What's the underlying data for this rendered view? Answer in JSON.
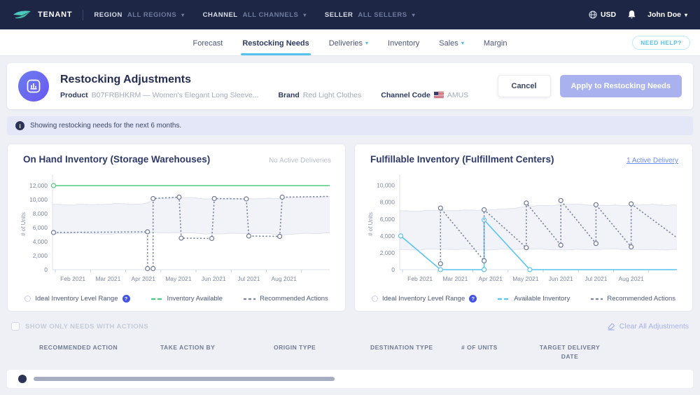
{
  "topnav": {
    "brand": "TENANT",
    "filters": [
      {
        "label": "REGION",
        "value": "ALL REGIONS"
      },
      {
        "label": "CHANNEL",
        "value": "ALL CHANNELS"
      },
      {
        "label": "SELLER",
        "value": "ALL SELLERS"
      }
    ],
    "currency": "USD",
    "user": "John Doe"
  },
  "tabs": [
    {
      "label": "Forecast",
      "active": false,
      "dropdown": false
    },
    {
      "label": "Restocking Needs",
      "active": true,
      "dropdown": false
    },
    {
      "label": "Deliveries",
      "active": false,
      "dropdown": true
    },
    {
      "label": "Inventory",
      "active": false,
      "dropdown": false
    },
    {
      "label": "Sales",
      "active": false,
      "dropdown": true
    },
    {
      "label": "Margin",
      "active": false,
      "dropdown": false
    }
  ],
  "need_help": "NEED HELP?",
  "header": {
    "title": "Restocking Adjustments",
    "product_label": "Product",
    "product_value": "B07FRBHKRM — Women's Elegant Long Sleeve...",
    "brand_label": "Brand",
    "brand_value": "Red Light Clothes",
    "channel_label": "Channel Code",
    "channel_value": "AMUS",
    "cancel_label": "Cancel",
    "apply_label": "Apply to Restocking Needs"
  },
  "banner": {
    "text": "Showing restocking needs for the next 6 months."
  },
  "chart_data": [
    {
      "type": "line",
      "title": "On Hand Inventory (Storage Warehouses)",
      "right_label": "No Active Deliveries",
      "right_label_is_link": false,
      "ylabel": "# of Units",
      "ylim": [
        0,
        13000
      ],
      "yticks": [
        0,
        2000,
        4000,
        6000,
        8000,
        10000,
        12000
      ],
      "xlim": [
        0.42,
        8.3
      ],
      "xticks": [
        {
          "x": 1,
          "label": "Feb 2021"
        },
        {
          "x": 2,
          "label": "Mar 2021"
        },
        {
          "x": 3,
          "label": "Apr 2021"
        },
        {
          "x": 4,
          "label": "May 2021"
        },
        {
          "x": 5,
          "label": "Jun 2021"
        },
        {
          "x": 6,
          "label": "Jul 2021"
        },
        {
          "x": 7,
          "label": "Aug 2021"
        }
      ],
      "band": {
        "name": "Ideal Inventory Level Range",
        "x": [
          0.42,
          1.0,
          1.6,
          2.2,
          2.8,
          3.1,
          3.4,
          4.0,
          4.6,
          5.2,
          5.8,
          6.4,
          7.0,
          7.6,
          8.3
        ],
        "high": [
          9350,
          9250,
          9300,
          9400,
          9350,
          9500,
          10150,
          10350,
          10150,
          10100,
          10150,
          10100,
          10250,
          10300,
          10450
        ],
        "low": [
          5150,
          5250,
          5150,
          5100,
          5200,
          5250,
          5250,
          5300,
          5150,
          5100,
          5200,
          5150,
          5000,
          5150,
          5250
        ]
      },
      "series": [
        {
          "name": "Inventory Available",
          "color": "#4ecb7f",
          "dash": false,
          "points": [
            [
              0.45,
              12000,
              1
            ],
            [
              8.3,
              12000,
              0
            ]
          ]
        },
        {
          "name": "Recommended Actions",
          "color": "#7a85a0",
          "marker_color": "#6d7894",
          "dash": true,
          "points": [
            [
              0.45,
              5300,
              1
            ],
            [
              3.12,
              5400,
              1
            ],
            [
              3.12,
              150,
              1
            ],
            [
              3.28,
              150,
              1
            ],
            [
              3.28,
              10150,
              1
            ],
            [
              4.02,
              10350,
              1
            ],
            [
              4.08,
              4500,
              1
            ],
            [
              4.95,
              4450,
              1
            ],
            [
              5.02,
              10150,
              1
            ],
            [
              5.93,
              10100,
              1
            ],
            [
              6.0,
              4800,
              1
            ],
            [
              6.88,
              4750,
              1
            ],
            [
              6.95,
              10350,
              1
            ],
            [
              8.3,
              10450,
              0
            ]
          ]
        }
      ],
      "legend": [
        {
          "type": "band",
          "label": "Ideal Inventory Level Range",
          "help": true
        },
        {
          "type": "line",
          "label": "Inventory Available",
          "color": "#4ecb7f",
          "dash": false
        },
        {
          "type": "line",
          "label": "Recommended Actions",
          "color": "#7a85a0",
          "dash": true
        }
      ]
    },
    {
      "type": "line",
      "title": "Fulfillable Inventory (Fulfillment Centers)",
      "right_label": "1 Active Delivery",
      "right_label_is_link": true,
      "ylabel": "# of Units",
      "ylim": [
        0,
        10800
      ],
      "yticks": [
        0,
        2000,
        4000,
        6000,
        8000,
        10000
      ],
      "xlim": [
        0.42,
        8.3
      ],
      "xticks": [
        {
          "x": 1,
          "label": "Feb 2021"
        },
        {
          "x": 2,
          "label": "Mar 2021"
        },
        {
          "x": 3,
          "label": "Apr 2021"
        },
        {
          "x": 4,
          "label": "May 2021"
        },
        {
          "x": 5,
          "label": "Jun 2021"
        },
        {
          "x": 6,
          "label": "Jul 2021"
        },
        {
          "x": 7,
          "label": "Aug 2021"
        }
      ],
      "band": {
        "name": "Ideal Inventory Level Range",
        "x": [
          0.42,
          1.0,
          1.6,
          2.2,
          2.8,
          3.4,
          4.0,
          4.6,
          5.2,
          5.8,
          6.4,
          7.0,
          7.6,
          8.3
        ],
        "high": [
          7000,
          6950,
          7050,
          7000,
          7100,
          7150,
          7500,
          7600,
          7750,
          7700,
          7600,
          7650,
          7700,
          7650
        ],
        "low": [
          2400,
          2350,
          2450,
          2400,
          2350,
          2400,
          2450,
          2400,
          2350,
          2400,
          2450,
          2400,
          2350,
          2400
        ]
      },
      "series": [
        {
          "name": "Available Inventory",
          "color": "#59c4f2",
          "dash": false,
          "points": [
            [
              0.45,
              4000,
              1
            ],
            [
              1.58,
              0,
              1
            ],
            [
              2.82,
              0,
              1
            ],
            [
              2.82,
              5900,
              1
            ],
            [
              4.12,
              0,
              1
            ],
            [
              8.3,
              0,
              0
            ]
          ]
        },
        {
          "name": "Recommended Actions",
          "color": "#7a85a0",
          "marker_color": "#6d7894",
          "dash": true,
          "points": [
            [
              1.58,
              700,
              1
            ],
            [
              1.58,
              7300,
              1
            ],
            [
              2.82,
              1050,
              1
            ],
            [
              2.82,
              7100,
              1
            ],
            [
              4.02,
              2600,
              1
            ],
            [
              4.02,
              7900,
              1
            ],
            [
              5.0,
              2900,
              1
            ],
            [
              5.0,
              8200,
              1
            ],
            [
              6.0,
              3100,
              1
            ],
            [
              6.0,
              7700,
              1
            ],
            [
              7.0,
              2700,
              1
            ],
            [
              7.0,
              7800,
              1
            ],
            [
              8.3,
              3800,
              0
            ]
          ]
        }
      ],
      "legend": [
        {
          "type": "band",
          "label": "Ideal Inventory Level Range",
          "help": true
        },
        {
          "type": "line",
          "label": "Available Inventory",
          "color": "#59c4f2",
          "dash": false
        },
        {
          "type": "line",
          "label": "Recommended Actions",
          "color": "#7a85a0",
          "dash": true
        }
      ]
    }
  ],
  "footer": {
    "show_only": "SHOW ONLY NEEDS WITH ACTIONS",
    "clear_all": "Clear All Adjustments",
    "columns": [
      "RECOMMENDED ACTION",
      "TAKE ACTION BY",
      "ORIGIN TYPE",
      "DESTINATION TYPE",
      "# OF UNITS",
      "TARGET DELIVERY DATE"
    ]
  }
}
